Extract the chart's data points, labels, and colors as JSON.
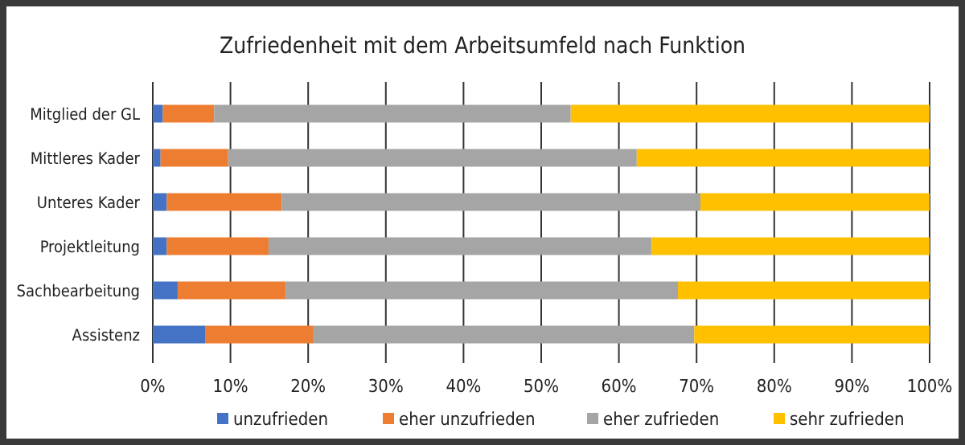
{
  "chart_data": {
    "type": "bar",
    "orientation": "horizontal",
    "stacked": true,
    "title": "Zufriedenheit mit dem Arbeitsumfeld nach Funktion",
    "categories": [
      "Mitglied der GL",
      "Mittleres Kader",
      "Unteres Kader",
      "Projektleitung",
      "Sachbearbeitung",
      "Assistenz"
    ],
    "series": [
      {
        "name": "unzufrieden",
        "color": "#4472c4",
        "values": [
          1.3,
          1.0,
          1.8,
          1.8,
          3.2,
          6.8
        ]
      },
      {
        "name": "eher unzufrieden",
        "color": "#ed7d31",
        "values": [
          6.6,
          8.7,
          14.8,
          13.1,
          13.9,
          13.8
        ]
      },
      {
        "name": "eher zufrieden",
        "color": "#a5a5a5",
        "values": [
          45.9,
          52.6,
          53.9,
          49.3,
          50.5,
          49.1
        ]
      },
      {
        "name": "sehr zufrieden",
        "color": "#ffc000",
        "values": [
          46.2,
          37.7,
          29.5,
          35.8,
          32.4,
          30.3
        ]
      }
    ],
    "xlim": [
      0,
      100
    ],
    "xticks": [
      {
        "value": 0,
        "label": "0%"
      },
      {
        "value": 10,
        "label": "10%"
      },
      {
        "value": 20,
        "label": "20%"
      },
      {
        "value": 30,
        "label": "30%"
      },
      {
        "value": 40,
        "label": "40%"
      },
      {
        "value": 50,
        "label": "50%"
      },
      {
        "value": 60,
        "label": "60%"
      },
      {
        "value": 70,
        "label": "70%"
      },
      {
        "value": 80,
        "label": "80%"
      },
      {
        "value": 90,
        "label": "90%"
      },
      {
        "value": 100,
        "label": "100%"
      }
    ],
    "grid": "x",
    "legend": "bottom"
  }
}
